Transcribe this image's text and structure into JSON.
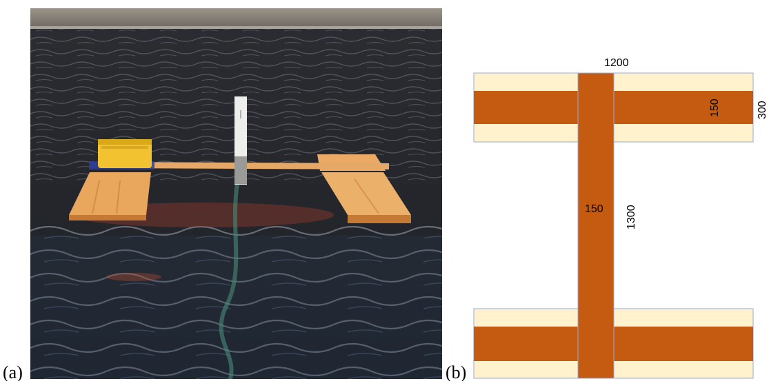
{
  "panels": {
    "a": {
      "label": "(a)"
    },
    "b": {
      "label": "(b)"
    }
  },
  "diagram": {
    "dimensions": {
      "top_width": "1200",
      "pontoon_height": "300",
      "pontoon_core_width": "150",
      "beam_width": "150",
      "beam_length": "1300"
    },
    "colors": {
      "core": "#C55A11",
      "foam": "#FFF2CC",
      "outline": "#8FAADC"
    }
  },
  "photo": {
    "colors": {
      "water_dark": "#1e2024",
      "water_mid": "#3a3d44",
      "wood": "#e8a35a",
      "box": "#f2c230",
      "shore": "#8a8478"
    }
  }
}
